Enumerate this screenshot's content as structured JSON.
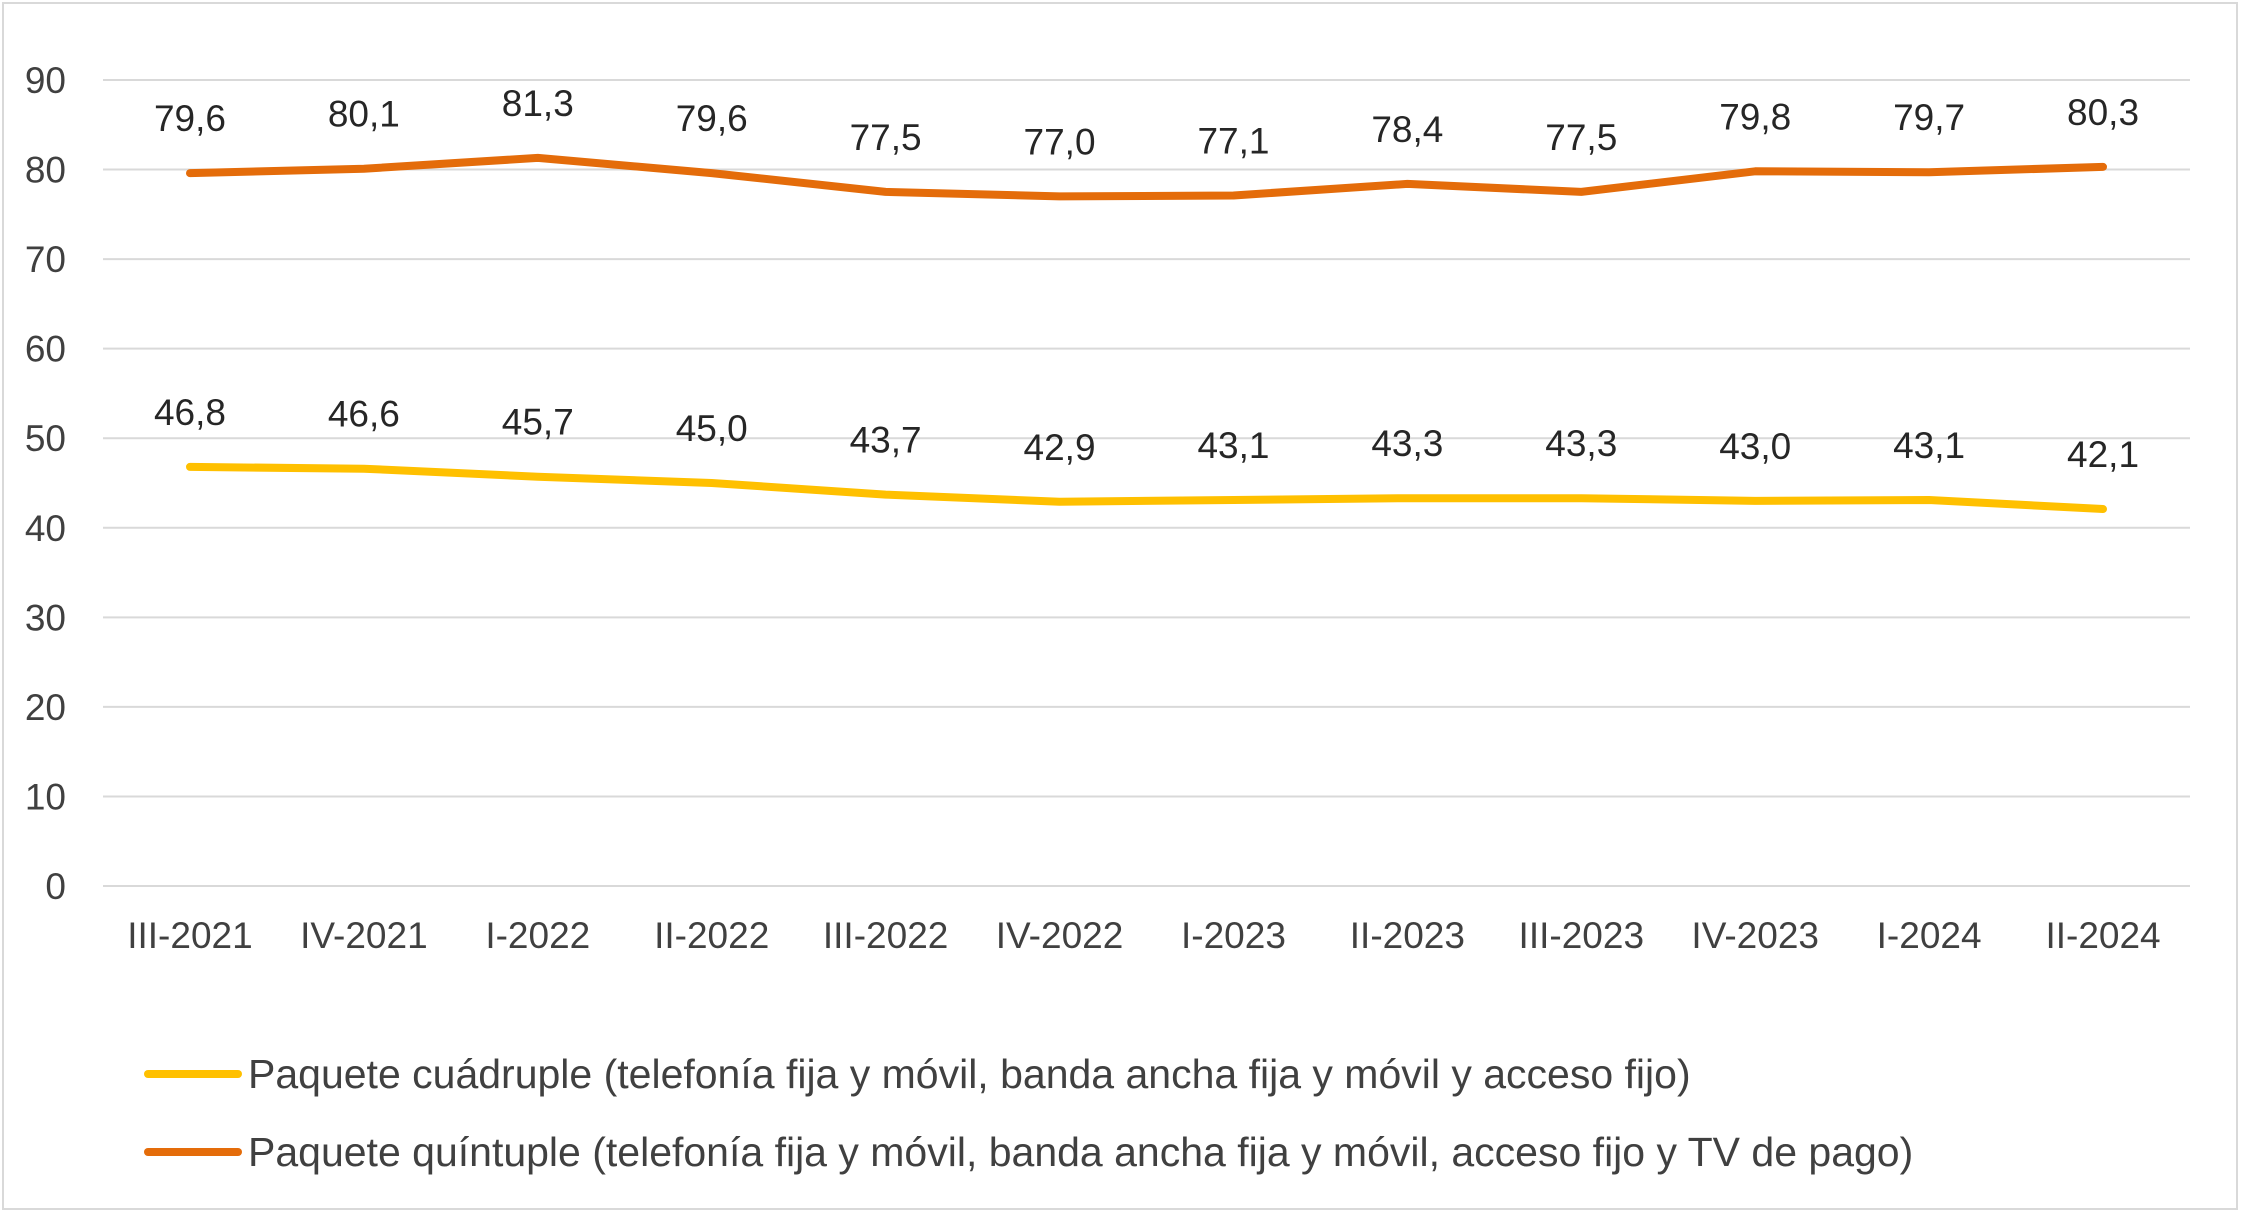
{
  "chart_data": {
    "type": "line",
    "title": "",
    "xlabel": "",
    "ylabel": "",
    "categories": [
      "III-2021",
      "IV-2021",
      "I-2022",
      "II-2022",
      "III-2022",
      "IV-2022",
      "I-2023",
      "II-2023",
      "III-2023",
      "IV-2023",
      "I-2024",
      "II-2024"
    ],
    "ylim": [
      0,
      90
    ],
    "yticks": [
      "0",
      "10",
      "20",
      "30",
      "40",
      "50",
      "60",
      "70",
      "80",
      "90"
    ],
    "grid": true,
    "legend_position": "bottom",
    "series": [
      {
        "name": "Paquete cuádruple (telefonía fija y móvil, banda ancha fija y móvil y acceso fijo)",
        "color": "#ffc000",
        "values": [
          46.8,
          46.6,
          45.7,
          45.0,
          43.7,
          42.9,
          43.1,
          43.3,
          43.3,
          43.0,
          43.1,
          42.1
        ],
        "labels": [
          "46,8",
          "46,6",
          "45,7",
          "45,0",
          "43,7",
          "42,9",
          "43,1",
          "43,3",
          "43,3",
          "43,0",
          "43,1",
          "42,1"
        ]
      },
      {
        "name": "Paquete quíntuple (telefonía fija y móvil, banda ancha fija y móvil, acceso fijo y TV de pago)",
        "color": "#e46c0a",
        "values": [
          79.6,
          80.1,
          81.3,
          79.6,
          77.5,
          77.0,
          77.1,
          78.4,
          77.5,
          79.8,
          79.7,
          80.3
        ],
        "labels": [
          "79,6",
          "80,1",
          "81,3",
          "79,6",
          "77,5",
          "77,0",
          "77,1",
          "78,4",
          "77,5",
          "79,8",
          "79,7",
          "80,3"
        ]
      }
    ]
  }
}
